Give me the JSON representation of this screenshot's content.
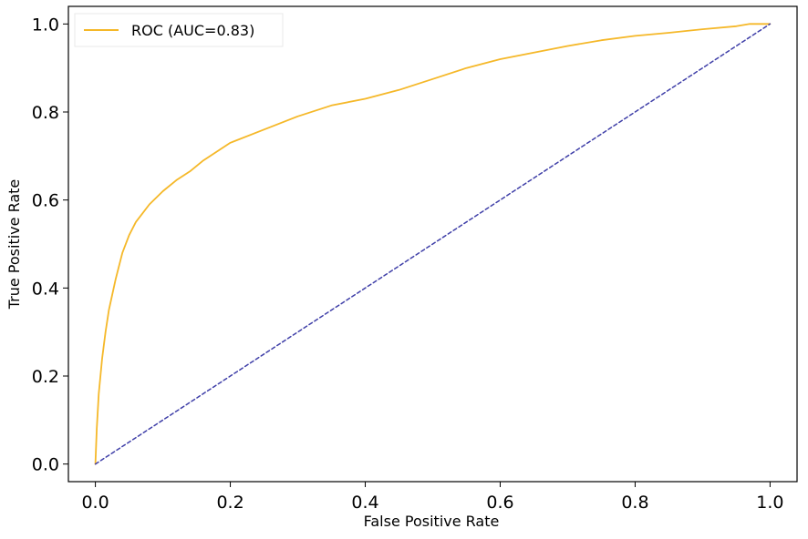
{
  "chart_data": {
    "type": "line",
    "xlabel": "False Positive Rate",
    "ylabel": "True Positive Rate",
    "xlim": [
      -0.04,
      1.04
    ],
    "ylim": [
      -0.04,
      1.04
    ],
    "xticks": [
      0.0,
      0.2,
      0.4,
      0.6,
      0.8,
      1.0
    ],
    "yticks": [
      0.0,
      0.2,
      0.4,
      0.6,
      0.8,
      1.0
    ],
    "xtick_labels": [
      "0.0",
      "0.2",
      "0.4",
      "0.6",
      "0.8",
      "1.0"
    ],
    "ytick_labels": [
      "0.0",
      "0.2",
      "0.4",
      "0.6",
      "0.8",
      "1.0"
    ],
    "grid": false,
    "legend_position": "top-left",
    "series": [
      {
        "name": "ROC (AUC=0.83)",
        "color": "#f5b829",
        "style": "solid",
        "x": [
          0.0,
          0.002,
          0.005,
          0.01,
          0.015,
          0.02,
          0.03,
          0.04,
          0.05,
          0.06,
          0.07,
          0.08,
          0.1,
          0.12,
          0.14,
          0.16,
          0.18,
          0.2,
          0.25,
          0.3,
          0.35,
          0.4,
          0.45,
          0.5,
          0.55,
          0.6,
          0.65,
          0.7,
          0.75,
          0.8,
          0.85,
          0.9,
          0.95,
          0.97,
          1.0
        ],
        "y": [
          0.0,
          0.08,
          0.16,
          0.24,
          0.3,
          0.35,
          0.42,
          0.48,
          0.52,
          0.55,
          0.57,
          0.59,
          0.62,
          0.645,
          0.665,
          0.69,
          0.71,
          0.73,
          0.76,
          0.79,
          0.815,
          0.83,
          0.85,
          0.875,
          0.9,
          0.92,
          0.935,
          0.95,
          0.963,
          0.973,
          0.98,
          0.988,
          0.995,
          1.0,
          1.0
        ]
      },
      {
        "color": "#3f3fa8",
        "style": "dashed",
        "x": [
          0.0,
          1.0
        ],
        "y": [
          0.0,
          1.0
        ]
      }
    ]
  }
}
